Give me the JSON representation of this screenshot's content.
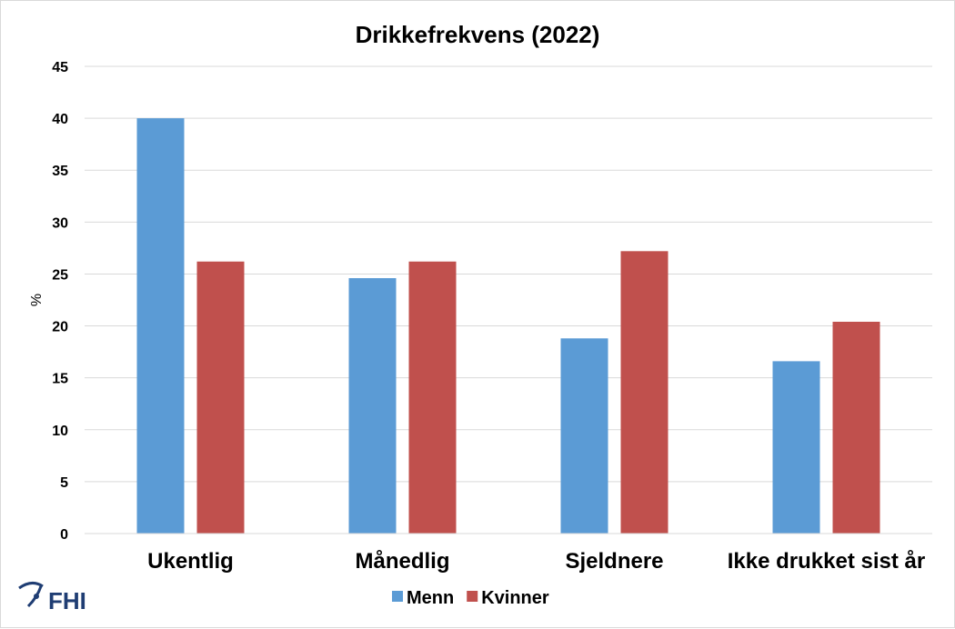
{
  "chart_data": {
    "type": "bar",
    "title": "Drikkefrekvens (2022)",
    "xlabel": "",
    "ylabel": "%",
    "ylim": [
      0,
      45
    ],
    "yticks": [
      0,
      5,
      10,
      15,
      20,
      25,
      30,
      35,
      40,
      45
    ],
    "grid": true,
    "legend_position": "bottom",
    "categories": [
      "Ukentlig",
      "Månedlig",
      "Sjeldnere",
      "Ikke drukket sist år"
    ],
    "series": [
      {
        "name": "Menn",
        "color": "#5b9bd5",
        "values": [
          40.0,
          24.6,
          18.8,
          16.6
        ]
      },
      {
        "name": "Kvinner",
        "color": "#c0504d",
        "values": [
          26.2,
          26.2,
          27.2,
          20.4
        ]
      }
    ]
  },
  "logo": {
    "text": "FHI",
    "icon": "fhi-logo-icon"
  }
}
